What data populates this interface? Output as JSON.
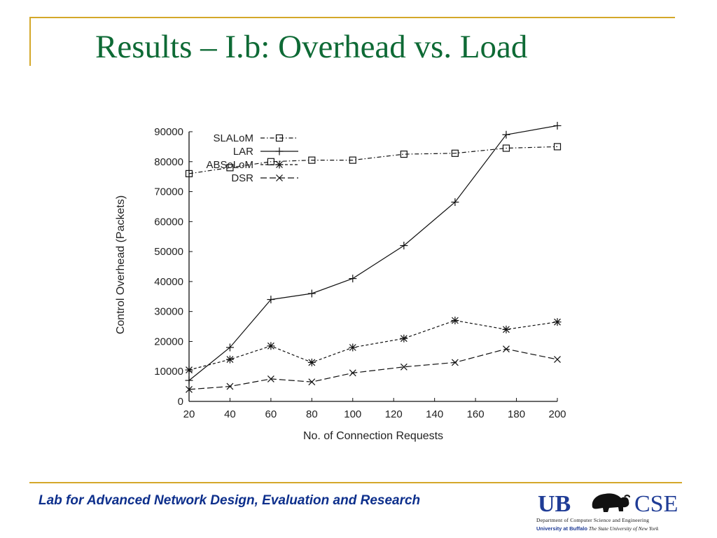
{
  "slide": {
    "title": "Results – I.b: Overhead vs. Load",
    "footer": "Lab for Advanced Network Design, Evaluation and Research",
    "accent_color": "#d4a82a",
    "title_color": "#0e6a35",
    "footer_color": "#0d2f8c"
  },
  "logo": {
    "ub": "UB",
    "cse": "CSE",
    "dept": "Department of Computer Science and Engineering",
    "university": "University at Buffalo",
    "suny": "The State University of New York",
    "icon": "buffalo-icon"
  },
  "chart_data": {
    "type": "line",
    "title": "",
    "xlabel": "No. of Connection Requests",
    "ylabel": "Control Overhead (Packets)",
    "xlim": [
      20,
      200
    ],
    "ylim": [
      0,
      90000
    ],
    "xticks": [
      20,
      40,
      60,
      80,
      100,
      120,
      140,
      160,
      180,
      200
    ],
    "yticks": [
      0,
      10000,
      20000,
      30000,
      40000,
      50000,
      60000,
      70000,
      80000,
      90000
    ],
    "x": [
      20,
      40,
      60,
      80,
      100,
      125,
      150,
      175,
      200
    ],
    "grid": false,
    "legend_position": "top-left",
    "series": [
      {
        "name": "SLALoM",
        "marker": "square",
        "dash": "dashdot",
        "values": [
          76000,
          78000,
          80000,
          80500,
          80500,
          82500,
          82800,
          84500,
          85000
        ]
      },
      {
        "name": "LAR",
        "marker": "plus",
        "dash": "solid",
        "values": [
          7000,
          18000,
          34000,
          36000,
          41000,
          52000,
          66500,
          89000,
          92000
        ]
      },
      {
        "name": "ABSoLoM",
        "marker": "star",
        "dash": "dashed",
        "values": [
          10500,
          14000,
          18500,
          13000,
          18000,
          21000,
          27000,
          24000,
          26500
        ]
      },
      {
        "name": "DSR",
        "marker": "x",
        "dash": "longdash",
        "values": [
          4000,
          5000,
          7500,
          6500,
          9500,
          11500,
          13000,
          17500,
          14000
        ]
      }
    ]
  }
}
